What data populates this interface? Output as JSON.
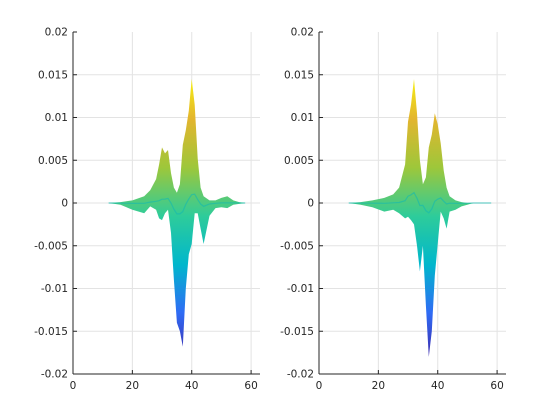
{
  "chart_data": [
    {
      "type": "area",
      "view": "3-D surface seen edge-on (x-z projection)",
      "xlim": [
        0,
        63
      ],
      "ylim": [
        -0.02,
        0.02
      ],
      "xticks": [
        0,
        20,
        40,
        60
      ],
      "xtick_labels": [
        "0",
        "20",
        "40",
        "60"
      ],
      "yticks": [
        -0.02,
        -0.015,
        -0.01,
        -0.005,
        0,
        0.005,
        0.01,
        0.015,
        0.02
      ],
      "ytick_labels": [
        "-0.02",
        "-0.015",
        "-0.01",
        "-0.005",
        "0",
        "0.005",
        "0.01",
        "0.015",
        "0.02"
      ],
      "grid": true,
      "colormap": [
        "#3e26a8",
        "#2f6cf5",
        "#00b7cc",
        "#2ecc9a",
        "#9ec73a",
        "#e3b52e",
        "#f9fb0e"
      ],
      "series": [
        {
          "x": [
            12,
            16,
            20,
            24,
            26,
            28,
            29,
            30,
            31,
            32,
            33,
            34,
            35,
            36,
            37,
            38,
            39,
            40,
            41,
            42,
            43,
            44,
            46,
            48,
            50,
            52,
            54,
            56,
            58
          ],
          "upper": [
            0,
            0.0001,
            0.0003,
            0.0008,
            0.0015,
            0.0028,
            0.0045,
            0.0065,
            0.0058,
            0.0062,
            0.0035,
            0.0018,
            0.0012,
            0.0022,
            0.0068,
            0.0085,
            0.0108,
            0.0145,
            0.0115,
            0.0052,
            0.0018,
            0.0008,
            0.0003,
            0.0003,
            0.0006,
            0.0008,
            0.0003,
            0.0001,
            0
          ],
          "lower": [
            0,
            -0.0002,
            -0.0008,
            -0.0012,
            -0.0004,
            -0.0008,
            -0.0018,
            -0.002,
            -0.0012,
            -0.0008,
            -0.0035,
            -0.009,
            -0.014,
            -0.015,
            -0.0168,
            -0.01,
            -0.006,
            -0.0048,
            -0.0012,
            -0.0012,
            -0.003,
            -0.0048,
            -0.0015,
            -0.0006,
            -0.0005,
            -0.0006,
            -0.0002,
            -0.0001,
            0
          ]
        },
        {
          "x": [
            10,
            14,
            18,
            22,
            25,
            27,
            29,
            30,
            31,
            32,
            33,
            34,
            35,
            36,
            37,
            38,
            39,
            40,
            41,
            42,
            43,
            44,
            46,
            48,
            50,
            52,
            54,
            56,
            58
          ],
          "upper": [
            0,
            0.0001,
            0.0003,
            0.0006,
            0.001,
            0.0018,
            0.0045,
            0.0095,
            0.0115,
            0.0145,
            0.0105,
            0.005,
            0.0022,
            0.003,
            0.0065,
            0.008,
            0.0105,
            0.0092,
            0.007,
            0.0038,
            0.0018,
            0.0008,
            0.0003,
            0.0001,
            0,
            0,
            0,
            0,
            0
          ],
          "lower": [
            0,
            -0.0002,
            -0.0005,
            -0.001,
            -0.0008,
            -0.0012,
            -0.0018,
            -0.0016,
            -0.002,
            -0.0025,
            -0.005,
            -0.008,
            -0.005,
            -0.012,
            -0.018,
            -0.015,
            -0.0085,
            -0.0048,
            -0.001,
            -0.0018,
            -0.003,
            -0.001,
            -0.0008,
            -0.0004,
            -0.0002,
            0,
            0,
            0,
            0
          ]
        }
      ]
    },
    {
      "type": "area",
      "view": "3-D surface seen edge-on (x-z projection)",
      "xlim": [
        0,
        63
      ],
      "ylim": [
        -0.02,
        0.02
      ],
      "xticks": [
        0,
        20,
        40,
        60
      ],
      "xtick_labels": [
        "0",
        "20",
        "40",
        "60"
      ],
      "yticks": [
        -0.02,
        -0.015,
        -0.01,
        -0.005,
        0,
        0.005,
        0.01,
        0.015,
        0.02
      ],
      "ytick_labels": [
        "-0.02",
        "-0.015",
        "-0.01",
        "-0.005",
        "0",
        "0.005",
        "0.01",
        "0.015",
        "0.02"
      ],
      "grid": true,
      "colormap": [
        "#3e26a8",
        "#2f6cf5",
        "#00b7cc",
        "#2ecc9a",
        "#9ec73a",
        "#e3b52e",
        "#f9fb0e"
      ],
      "series": [
        {
          "x": [
            10,
            14,
            18,
            22,
            25,
            27,
            29,
            30,
            31,
            32,
            33,
            34,
            35,
            36,
            37,
            38,
            39,
            40,
            41,
            42,
            43,
            44,
            46,
            48,
            50,
            52,
            54,
            56,
            58
          ],
          "upper": [
            0,
            0.0001,
            0.0003,
            0.0006,
            0.001,
            0.0018,
            0.0045,
            0.0095,
            0.0115,
            0.0145,
            0.0105,
            0.005,
            0.0022,
            0.003,
            0.0065,
            0.008,
            0.0105,
            0.0092,
            0.007,
            0.0038,
            0.0018,
            0.0008,
            0.0003,
            0.0001,
            0,
            0,
            0,
            0,
            0
          ],
          "lower": [
            0,
            -0.0002,
            -0.0005,
            -0.001,
            -0.0008,
            -0.0012,
            -0.0018,
            -0.0016,
            -0.002,
            -0.0025,
            -0.005,
            -0.008,
            -0.005,
            -0.012,
            -0.018,
            -0.015,
            -0.0085,
            -0.0048,
            -0.001,
            -0.0018,
            -0.003,
            -0.001,
            -0.0008,
            -0.0004,
            -0.0002,
            0,
            0,
            0,
            0
          ]
        }
      ]
    }
  ]
}
